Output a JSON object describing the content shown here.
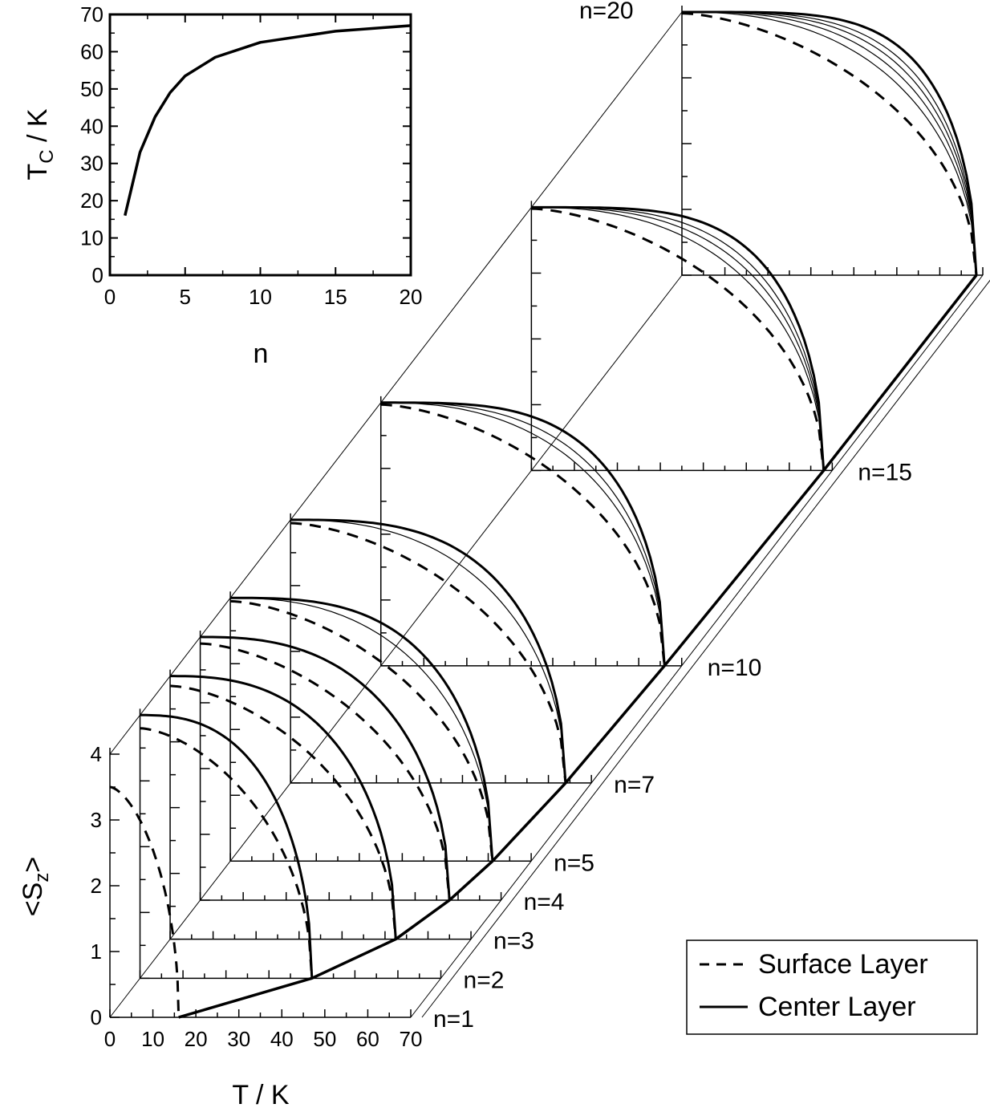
{
  "chart_data": [
    {
      "type": "line",
      "name": "inset",
      "xlabel": "n",
      "ylabel_main": "T",
      "ylabel_sub": "C",
      "ylabel_unit": " / K",
      "xlim": [
        0,
        20
      ],
      "ylim": [
        0,
        70
      ],
      "xticks": [
        0,
        5,
        10,
        15,
        20
      ],
      "yticks": [
        0,
        10,
        20,
        30,
        40,
        50,
        60,
        70
      ],
      "x": [
        1,
        2,
        3,
        4,
        5,
        7,
        10,
        15,
        20
      ],
      "y": [
        16,
        33,
        42.5,
        49,
        53.5,
        58.5,
        62.5,
        65.5,
        67
      ]
    },
    {
      "type": "line",
      "name": "main-3d",
      "xlabel": "T / K",
      "ylabel_main": "<S",
      "ylabel_sub": "z",
      "ylabel_end": ">",
      "xlim": [
        0,
        70
      ],
      "ylim": [
        0,
        4
      ],
      "xticks": [
        0,
        10,
        20,
        30,
        40,
        50,
        60,
        70
      ],
      "yticks": [
        0,
        1,
        2,
        3,
        4
      ],
      "layers": [
        {
          "n": 1,
          "label": "n=1",
          "tc": 16,
          "s_surface": 3.5,
          "s_center": 3.5,
          "extra_lines": 0
        },
        {
          "n": 2,
          "label": "n=2",
          "tc": 40,
          "s_surface": 3.8,
          "s_center": 4.0,
          "extra_lines": 0
        },
        {
          "n": 3,
          "label": "n=3",
          "tc": 52.5,
          "s_surface": 3.85,
          "s_center": 4.0,
          "extra_lines": 0
        },
        {
          "n": 4,
          "label": "n=4",
          "tc": 58,
          "s_surface": 3.9,
          "s_center": 4.0,
          "extra_lines": 0
        },
        {
          "n": 5,
          "label": "n=5",
          "tc": 61,
          "s_surface": 3.95,
          "s_center": 4.0,
          "extra_lines": 1
        },
        {
          "n": 7,
          "label": "n=7",
          "tc": 64,
          "s_surface": 3.95,
          "s_center": 4.0,
          "extra_lines": 1
        },
        {
          "n": 10,
          "label": "n=10",
          "tc": 66,
          "s_surface": 3.97,
          "s_center": 4.0,
          "extra_lines": 2
        },
        {
          "n": 15,
          "label": "n=15",
          "tc": 68,
          "s_surface": 3.98,
          "s_center": 4.0,
          "extra_lines": 3
        },
        {
          "n": 20,
          "label": "n=20",
          "tc": 68.5,
          "s_surface": 3.98,
          "s_center": 4.0,
          "extra_lines": 4
        }
      ],
      "legend": {
        "position": "bottom-right",
        "entries": [
          {
            "label": "Surface Layer",
            "style": "dashed"
          },
          {
            "label": "Center Layer",
            "style": "solid"
          }
        ]
      }
    }
  ]
}
